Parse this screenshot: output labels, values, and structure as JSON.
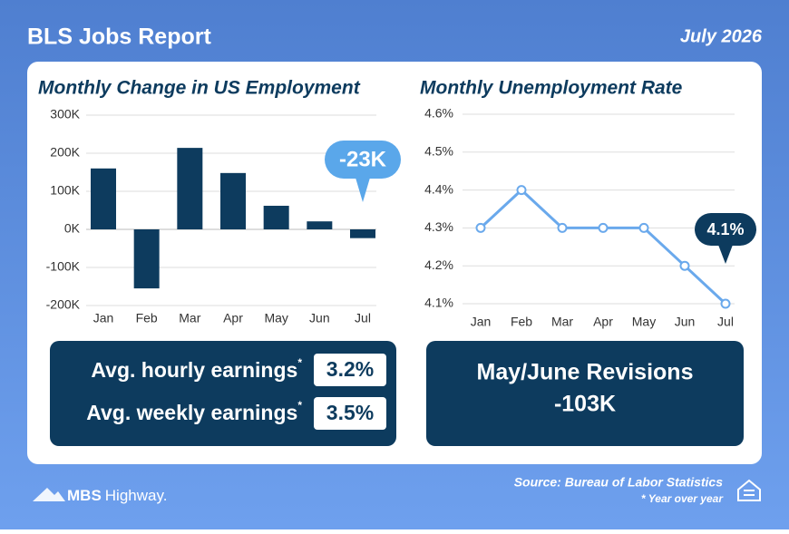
{
  "header": {
    "title": "BLS Jobs Report",
    "date": "July 2026"
  },
  "chart_data": [
    {
      "type": "bar",
      "title": "Monthly Change in US Employment",
      "categories": [
        "Jan",
        "Feb",
        "Mar",
        "Apr",
        "May",
        "Jun",
        "Jul"
      ],
      "values": [
        160,
        -155,
        214,
        148,
        62,
        21,
        -23
      ],
      "value_labels": [
        null,
        null,
        null,
        null,
        null,
        null,
        "-23K"
      ],
      "color": "#0d3b5e",
      "label_color": "#5aa7ea",
      "ylim": [
        -200,
        300
      ],
      "yticks": [
        {
          "value": -200,
          "label": "-200K"
        },
        {
          "value": -100,
          "label": "-100K"
        },
        {
          "value": 0,
          "label": "0K"
        },
        {
          "value": 100,
          "label": "100K"
        },
        {
          "value": 200,
          "label": "200K"
        },
        {
          "value": 300,
          "label": "300K"
        }
      ],
      "grid": true
    },
    {
      "type": "line",
      "title": "Monthly Unemployment Rate",
      "categories": [
        "Jan",
        "Feb",
        "Mar",
        "Apr",
        "May",
        "Jun",
        "Jul"
      ],
      "values": [
        4.3,
        4.4,
        4.3,
        4.3,
        4.3,
        4.2,
        4.1
      ],
      "value_labels": [
        null,
        null,
        null,
        null,
        null,
        null,
        "4.1%"
      ],
      "color": "#6aa9ec",
      "label_color": "#0d3b5e",
      "ylim": [
        4.1,
        4.6
      ],
      "yticks": [
        {
          "value": 4.1,
          "label": "4.1%"
        },
        {
          "value": 4.2,
          "label": "4.2%"
        },
        {
          "value": 4.3,
          "label": "4.3%"
        },
        {
          "value": 4.4,
          "label": "4.4%"
        },
        {
          "value": 4.5,
          "label": "4.5%"
        },
        {
          "value": 4.6,
          "label": "4.6%"
        }
      ],
      "grid": true
    }
  ],
  "earnings": {
    "rows": [
      {
        "label": "Avg. hourly earnings",
        "marker": "*",
        "value": "3.2%"
      },
      {
        "label": "Avg. weekly earnings",
        "marker": "*",
        "value": "3.5%"
      }
    ]
  },
  "revisions": {
    "label": "May/June Revisions",
    "value": "-103K"
  },
  "footer": {
    "brand": {
      "name": "MBS",
      "suffix": "Highway."
    },
    "source": "Source: Bureau of Labor Statistics",
    "note": "* Year over year"
  }
}
